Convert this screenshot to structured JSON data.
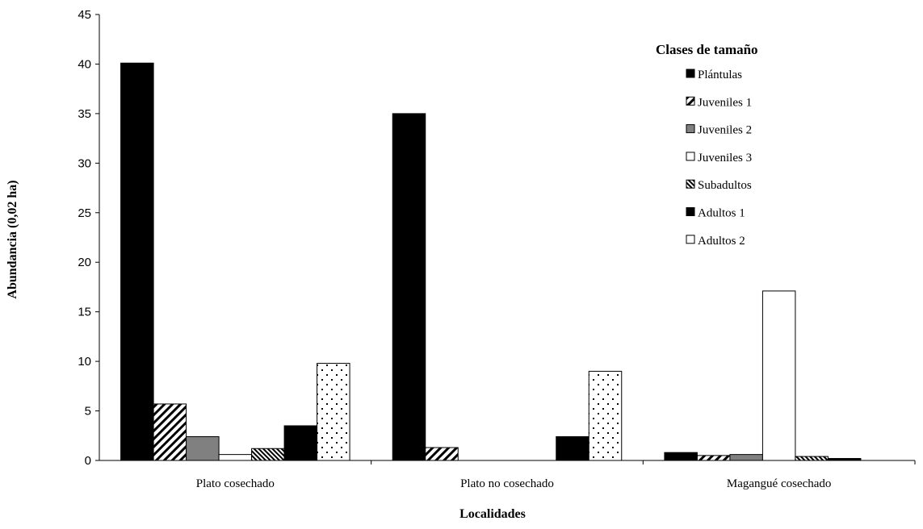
{
  "chart_data": {
    "type": "bar",
    "ylabel": "Abundancia (0,02 ha)",
    "xlabel": "Localidades",
    "ylim": [
      0,
      45
    ],
    "yticks": [
      0,
      5,
      10,
      15,
      20,
      25,
      30,
      35,
      40,
      45
    ],
    "categories": [
      "Plato cosechado",
      "Plato no cosechado",
      "Magangué cosechado"
    ],
    "legend": {
      "title": "Clases de tamaño",
      "placement": "top-right"
    },
    "series": [
      {
        "name": "Plántulas",
        "values": [
          40.1,
          35.0,
          0.8
        ],
        "pattern": "solid-black"
      },
      {
        "name": "Juveniles 1",
        "values": [
          5.7,
          1.3,
          0.5
        ],
        "pattern": "diagonal-stripes"
      },
      {
        "name": "Juveniles 2",
        "values": [
          2.4,
          0,
          0.6
        ],
        "pattern": "solid-gray"
      },
      {
        "name": "Juveniles 3",
        "values": [
          0.6,
          0,
          17.1
        ],
        "pattern": "white"
      },
      {
        "name": "Subadultos",
        "values": [
          1.2,
          0,
          0.4
        ],
        "pattern": "dense-diagonal"
      },
      {
        "name": "Adultos 1",
        "values": [
          3.5,
          2.4,
          0.2
        ],
        "pattern": "solid-black"
      },
      {
        "name": "Adultos 2",
        "values": [
          9.8,
          9.0,
          0
        ],
        "pattern": "dots"
      }
    ],
    "grid": false
  }
}
